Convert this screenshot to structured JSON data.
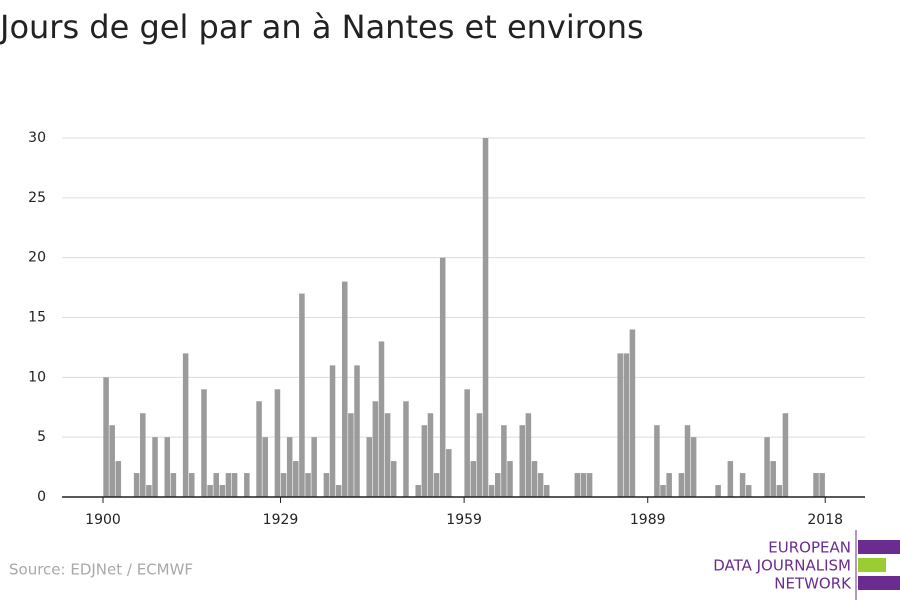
{
  "chart_data": {
    "type": "bar",
    "title": "Jours de gel par an à Nantes et environs",
    "source": "Source: EDJNet / ECMWF",
    "logo": [
      "EUROPEAN",
      "DATA JOURNALISM",
      "NETWORK"
    ],
    "color": "#9b9b9b",
    "grid": true,
    "x": [
      1900,
      1901,
      1902,
      1903,
      1904,
      1905,
      1906,
      1907,
      1908,
      1909,
      1910,
      1911,
      1912,
      1913,
      1914,
      1915,
      1916,
      1917,
      1918,
      1919,
      1920,
      1921,
      1922,
      1923,
      1924,
      1925,
      1926,
      1927,
      1928,
      1929,
      1930,
      1931,
      1932,
      1933,
      1934,
      1935,
      1936,
      1937,
      1938,
      1939,
      1940,
      1941,
      1942,
      1943,
      1944,
      1945,
      1946,
      1947,
      1948,
      1949,
      1950,
      1951,
      1952,
      1953,
      1954,
      1955,
      1956,
      1957,
      1958,
      1959,
      1960,
      1961,
      1962,
      1963,
      1964,
      1965,
      1966,
      1967,
      1968,
      1969,
      1970,
      1971,
      1972,
      1973,
      1974,
      1975,
      1976,
      1977,
      1978,
      1979,
      1980,
      1981,
      1982,
      1983,
      1984,
      1985,
      1986,
      1987,
      1988,
      1989,
      1990,
      1991,
      1992,
      1993,
      1994,
      1995,
      1996,
      1997,
      1998,
      1999,
      2000,
      2001,
      2002,
      2003,
      2004,
      2005,
      2006,
      2007,
      2008,
      2009,
      2010,
      2011,
      2012,
      2013,
      2014,
      2015,
      2016,
      2017
    ],
    "values": [
      10,
      6,
      3,
      0,
      0,
      2,
      7,
      1,
      5,
      0,
      5,
      2,
      0,
      12,
      2,
      0,
      9,
      1,
      2,
      1,
      2,
      2,
      0,
      2,
      0,
      8,
      5,
      0,
      9,
      2,
      5,
      3,
      17,
      2,
      5,
      0,
      2,
      11,
      1,
      18,
      7,
      11,
      0,
      5,
      8,
      13,
      7,
      3,
      0,
      8,
      0,
      1,
      6,
      7,
      2,
      20,
      4,
      0,
      0,
      9,
      3,
      7,
      30,
      1,
      2,
      6,
      3,
      0,
      6,
      7,
      3,
      2,
      1,
      0,
      0,
      0,
      0,
      2,
      2,
      2,
      0,
      0,
      0,
      0,
      12,
      12,
      14,
      0,
      0,
      0,
      6,
      1,
      2,
      0,
      2,
      6,
      5,
      0,
      0,
      0,
      1,
      0,
      3,
      0,
      2,
      1,
      0,
      0,
      5,
      3,
      1,
      7,
      0,
      0,
      0,
      0,
      2,
      2
    ],
    "xlim": [
      1893.3,
      2024.5
    ],
    "xticks": [
      1900,
      1929,
      1959,
      1989,
      2018
    ],
    "ylim": [
      0,
      30
    ],
    "yticks": [
      0,
      5,
      10,
      15,
      20,
      25,
      30
    ]
  }
}
